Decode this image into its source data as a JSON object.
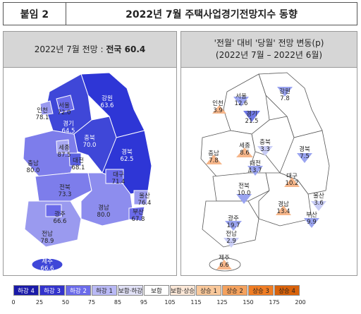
{
  "header": {
    "tag": "붙임 2",
    "title": "2022년 7월 주택사업경기전망지수 동향"
  },
  "left": {
    "heading_prefix": "2022년 7월 전망 : ",
    "heading_bold": "전국 60.4",
    "regions": [
      {
        "name": "서울",
        "value": "72.0"
      },
      {
        "name": "인천",
        "value": "78.1"
      },
      {
        "name": "경기",
        "value": "64.5"
      },
      {
        "name": "강원",
        "value": "63.6"
      },
      {
        "name": "세종",
        "value": "87.5"
      },
      {
        "name": "충북",
        "value": "70.0"
      },
      {
        "name": "대전",
        "value": "68.1"
      },
      {
        "name": "충남",
        "value": "80.0"
      },
      {
        "name": "경북",
        "value": "62.5"
      },
      {
        "name": "대구",
        "value": "71.4"
      },
      {
        "name": "전북",
        "value": "73.3"
      },
      {
        "name": "울산",
        "value": "76.4"
      },
      {
        "name": "경남",
        "value": "80.0"
      },
      {
        "name": "부산",
        "value": "67.8"
      },
      {
        "name": "광주",
        "value": "66.6"
      },
      {
        "name": "전남",
        "value": "78.9"
      },
      {
        "name": "제주",
        "value": "66.6"
      }
    ]
  },
  "right": {
    "heading_line1": "'전월' 대비 '당월' 전망 변동(p)",
    "heading_line2": "(2022년 7월 – 2022년 6월)",
    "regions": [
      {
        "name": "서울",
        "value": "12.6",
        "dir": "down"
      },
      {
        "name": "인천",
        "value": "3.9",
        "dir": "up"
      },
      {
        "name": "경기",
        "value": "21.5",
        "dir": "down"
      },
      {
        "name": "강원",
        "value": "7.8",
        "dir": "down"
      },
      {
        "name": "충남",
        "value": "7.8",
        "dir": "up"
      },
      {
        "name": "세종",
        "value": "8.6",
        "dir": "up"
      },
      {
        "name": "충북",
        "value": "3.3",
        "dir": "down"
      },
      {
        "name": "대전",
        "value": "13.7",
        "dir": "down"
      },
      {
        "name": "경북",
        "value": "7.5",
        "dir": "down"
      },
      {
        "name": "대구",
        "value": "10.2",
        "dir": "up"
      },
      {
        "name": "전북",
        "value": "10.0",
        "dir": "down"
      },
      {
        "name": "울산",
        "value": "3.6",
        "dir": "down"
      },
      {
        "name": "경남",
        "value": "13.4",
        "dir": "up"
      },
      {
        "name": "부산",
        "value": "9.9",
        "dir": "down"
      },
      {
        "name": "광주",
        "value": "19.7",
        "dir": "down"
      },
      {
        "name": "전남",
        "value": "2.9",
        "dir": "down"
      },
      {
        "name": "제주",
        "value": "6.6",
        "dir": "up"
      }
    ]
  },
  "legend": {
    "items": [
      {
        "label": "하강 4",
        "color": "#1a1aa8"
      },
      {
        "label": "하강 3",
        "color": "#3333cc"
      },
      {
        "label": "하강 2",
        "color": "#6b6bea"
      },
      {
        "label": "하강 1",
        "color": "#b9b9f5"
      },
      {
        "label": "보합·하강",
        "color": "#e2e2f7"
      },
      {
        "label": "보합",
        "color": "#ffffff"
      },
      {
        "label": "보합·상승",
        "color": "#fde9d9"
      },
      {
        "label": "상승 1",
        "color": "#f9c89b"
      },
      {
        "label": "상승 2",
        "color": "#f5a25e"
      },
      {
        "label": "상승 3",
        "color": "#f07d24"
      },
      {
        "label": "상승 4",
        "color": "#d9620a"
      }
    ],
    "ticks": [
      "0",
      "25",
      "50",
      "75",
      "85",
      "95",
      "105",
      "115",
      "125",
      "150",
      "175",
      "200"
    ]
  }
}
